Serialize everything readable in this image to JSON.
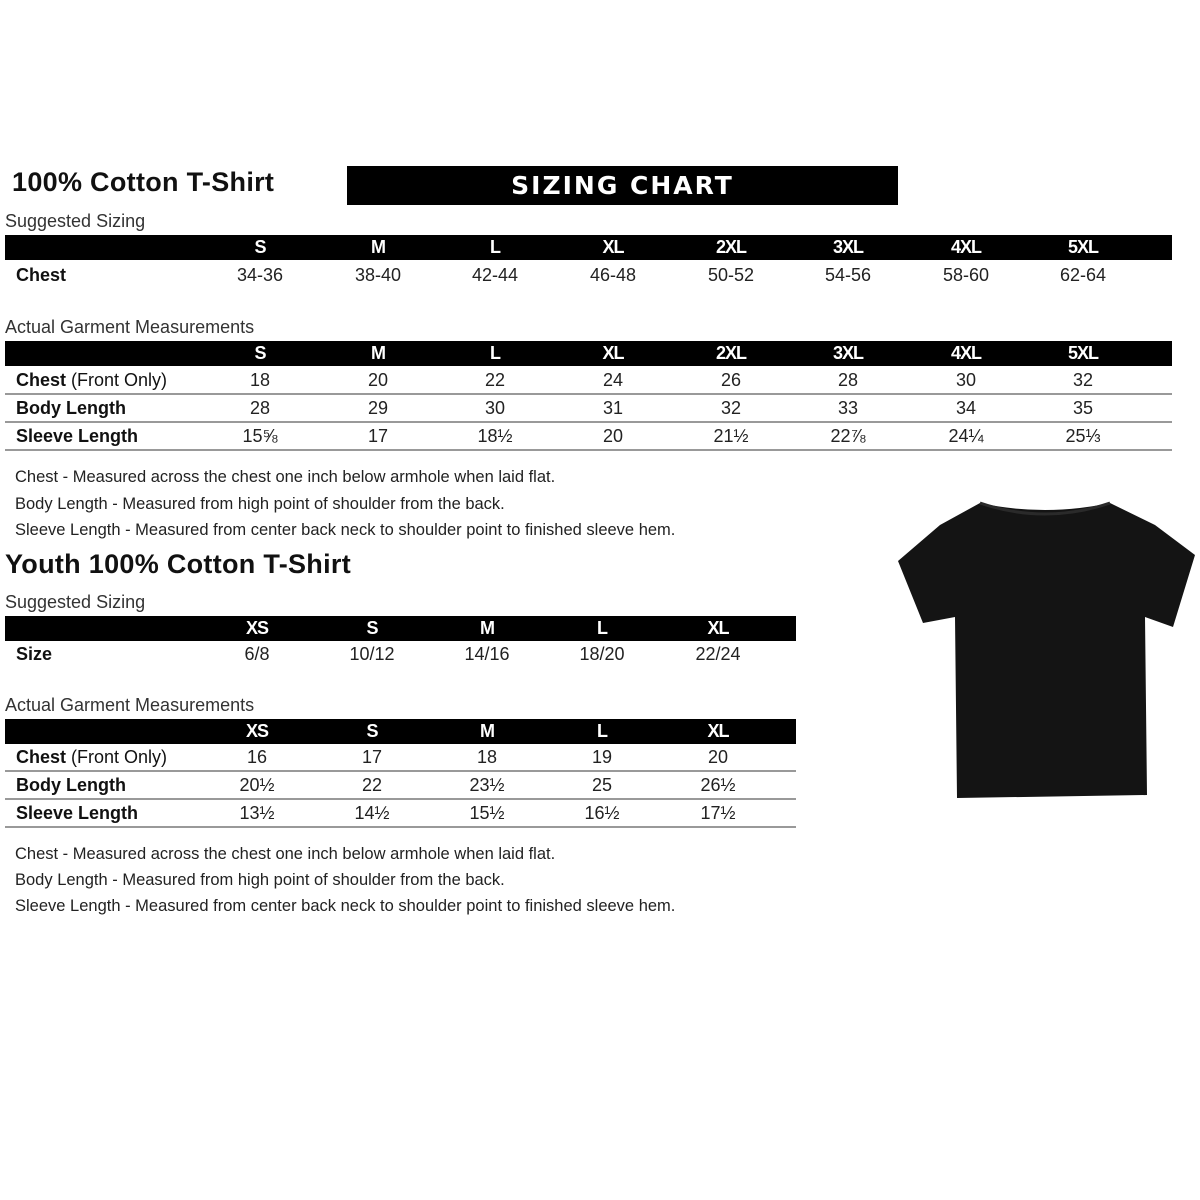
{
  "adult": {
    "title": "100% Cotton T-Shirt",
    "banner": "SIZING CHART",
    "suggested": {
      "label": "Suggested Sizing",
      "sizes": [
        "S",
        "M",
        "L",
        "XL",
        "2XL",
        "3XL",
        "4XL",
        "5XL"
      ],
      "rows": [
        {
          "label": "Chest",
          "values": [
            "34-36",
            "38-40",
            "42-44",
            "46-48",
            "50-52",
            "54-56",
            "58-60",
            "62-64"
          ]
        }
      ]
    },
    "actual": {
      "label": "Actual Garment Measurements",
      "sizes": [
        "S",
        "M",
        "L",
        "XL",
        "2XL",
        "3XL",
        "4XL",
        "5XL"
      ],
      "rows": [
        {
          "label": "Chest",
          "label_note": "(Front Only)",
          "values": [
            "18",
            "20",
            "22",
            "24",
            "26",
            "28",
            "30",
            "32"
          ]
        },
        {
          "label": "Body Length",
          "values": [
            "28",
            "29",
            "30",
            "31",
            "32",
            "33",
            "34",
            "35"
          ]
        },
        {
          "label": "Sleeve Length",
          "values": [
            "15⅝",
            "17",
            "18½",
            "20",
            "21½",
            "22⅞",
            "24¼",
            "25⅓"
          ]
        }
      ]
    },
    "notes": [
      "Chest - Measured across the chest one inch below armhole when laid flat.",
      "Body Length - Measured from high point of shoulder from the back.",
      "Sleeve Length - Measured from center back neck to shoulder point to finished sleeve hem."
    ]
  },
  "youth": {
    "title": "Youth 100% Cotton T-Shirt",
    "suggested": {
      "label": "Suggested Sizing",
      "sizes": [
        "XS",
        "S",
        "M",
        "L",
        "XL"
      ],
      "rows": [
        {
          "label": "Size",
          "values": [
            "6/8",
            "10/12",
            "14/16",
            "18/20",
            "22/24"
          ]
        }
      ]
    },
    "actual": {
      "label": "Actual Garment Measurements",
      "sizes": [
        "XS",
        "S",
        "M",
        "L",
        "XL"
      ],
      "rows": [
        {
          "label": "Chest",
          "label_note": "(Front Only)",
          "values": [
            "16",
            "17",
            "18",
            "19",
            "20"
          ]
        },
        {
          "label": "Body Length",
          "values": [
            "20½",
            "22",
            "23½",
            "25",
            "26½"
          ]
        },
        {
          "label": "Sleeve Length",
          "values": [
            "13½",
            "14½",
            "15½",
            "16½",
            "17½"
          ]
        }
      ]
    },
    "notes": [
      "Chest - Measured across the chest one inch below armhole when laid flat.",
      "Body Length - Measured from high point of shoulder from the back.",
      "Sleeve Length - Measured from center back neck to shoulder point to finished sleeve hem."
    ]
  },
  "colors": {
    "header_bar": "#000000",
    "shirt": "#141414",
    "separator": "#999999"
  }
}
